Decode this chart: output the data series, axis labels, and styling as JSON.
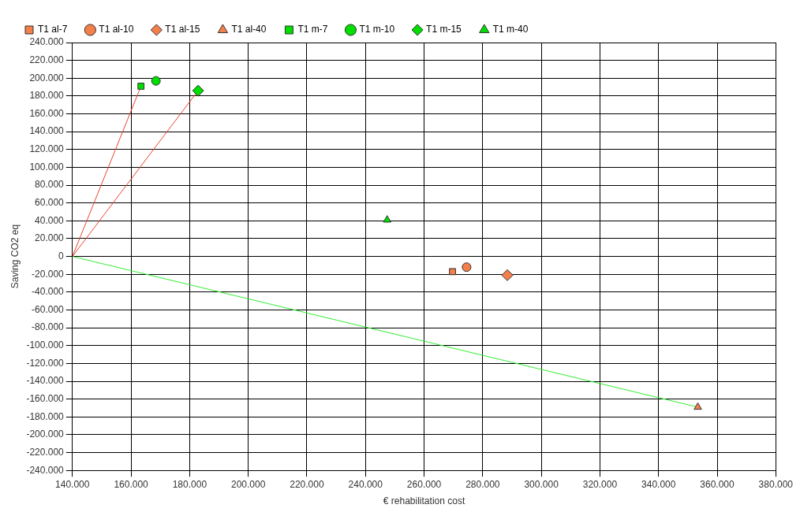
{
  "chart_data": {
    "type": "scatter",
    "xlabel": "€ rehabilitation cost",
    "ylabel": "Saving CO2 eq",
    "xlim": [
      140000,
      380000
    ],
    "xticks": [
      {
        "value": 140000,
        "label": "140.000"
      },
      {
        "value": 160000,
        "label": "160.000"
      },
      {
        "value": 180000,
        "label": "180.000"
      },
      {
        "value": 200000,
        "label": "200.000"
      },
      {
        "value": 220000,
        "label": "220.000"
      },
      {
        "value": 240000,
        "label": "240.000"
      },
      {
        "value": 260000,
        "label": "260.000"
      },
      {
        "value": 280000,
        "label": "280.000"
      },
      {
        "value": 300000,
        "label": "300.000"
      },
      {
        "value": 320000,
        "label": "320.000"
      },
      {
        "value": 340000,
        "label": "340.000"
      },
      {
        "value": 360000,
        "label": "360.000"
      },
      {
        "value": 380000,
        "label": "380.000"
      }
    ],
    "ylim": [
      -240000,
      240000
    ],
    "yticks": [
      {
        "value": -240000,
        "label": "-240.000"
      },
      {
        "value": -220000,
        "label": "-220.000"
      },
      {
        "value": -200000,
        "label": "-200.000"
      },
      {
        "value": -180000,
        "label": "-180.000"
      },
      {
        "value": -160000,
        "label": "-160.000"
      },
      {
        "value": -140000,
        "label": "-140.000"
      },
      {
        "value": -120000,
        "label": "-120.000"
      },
      {
        "value": -100000,
        "label": "-100.000"
      },
      {
        "value": -80000,
        "label": "-80.000"
      },
      {
        "value": -60000,
        "label": "-60.000"
      },
      {
        "value": -40000,
        "label": "-40.000"
      },
      {
        "value": -20000,
        "label": "-20.000"
      },
      0,
      {
        "value": 20000,
        "label": "20.000"
      },
      {
        "value": 40000,
        "label": "40.000"
      },
      {
        "value": 60000,
        "label": "60.000"
      },
      {
        "value": 80000,
        "label": "80.000"
      },
      {
        "value": 100000,
        "label": "100.000"
      },
      {
        "value": 120000,
        "label": "120.000"
      },
      {
        "value": 140000,
        "label": "140.000"
      },
      {
        "value": 160000,
        "label": "160.000"
      },
      {
        "value": 180000,
        "label": "180.000"
      },
      {
        "value": 200000,
        "label": "200.000"
      },
      {
        "value": 220000,
        "label": "220.000"
      },
      {
        "value": 240000,
        "label": "240.000"
      }
    ],
    "grid": true,
    "legend": "top left",
    "series": [
      {
        "name": "T1 al-7",
        "color": "#f47f4a",
        "marker": "square",
        "x": [
          269700
        ],
        "values": [
          -17000
        ]
      },
      {
        "name": "T1 al-10",
        "color": "#f47f4a",
        "marker": "circle",
        "x": [
          274500
        ],
        "values": [
          -12000
        ]
      },
      {
        "name": "T1 al-15",
        "color": "#f47f4a",
        "marker": "diamond",
        "x": [
          288400
        ],
        "values": [
          -21000
        ]
      },
      {
        "name": "T1 al-40",
        "color": "#f47f4a",
        "marker": "triangle",
        "x": [
          353400
        ],
        "values": [
          -169000
        ]
      },
      {
        "name": "T1 m-7",
        "color": "#00dd00",
        "marker": "square",
        "x": [
          163400
        ],
        "values": [
          191000
        ]
      },
      {
        "name": "T1 m-10",
        "color": "#00dd00",
        "marker": "circle",
        "x": [
          168500
        ],
        "values": [
          197000
        ]
      },
      {
        "name": "T1 m-15",
        "color": "#00dd00",
        "marker": "diamond",
        "x": [
          182900
        ],
        "values": [
          186000
        ]
      },
      {
        "name": "T1 m-40",
        "color": "#00dd00",
        "marker": "triangle",
        "x": [
          247400
        ],
        "values": [
          41000
        ]
      },
      {
        "type": "line",
        "color": "#e8452c",
        "marker": "none",
        "x": [
          140000,
          163400
        ],
        "values": [
          0,
          191000
        ]
      },
      {
        "type": "line",
        "color": "#e8452c",
        "marker": "none",
        "x": [
          140000,
          182900
        ],
        "values": [
          0,
          186000
        ]
      },
      {
        "type": "line",
        "color": "#33ee33",
        "marker": "none",
        "x": [
          140000,
          353400
        ],
        "values": [
          0,
          -169000
        ]
      }
    ]
  }
}
